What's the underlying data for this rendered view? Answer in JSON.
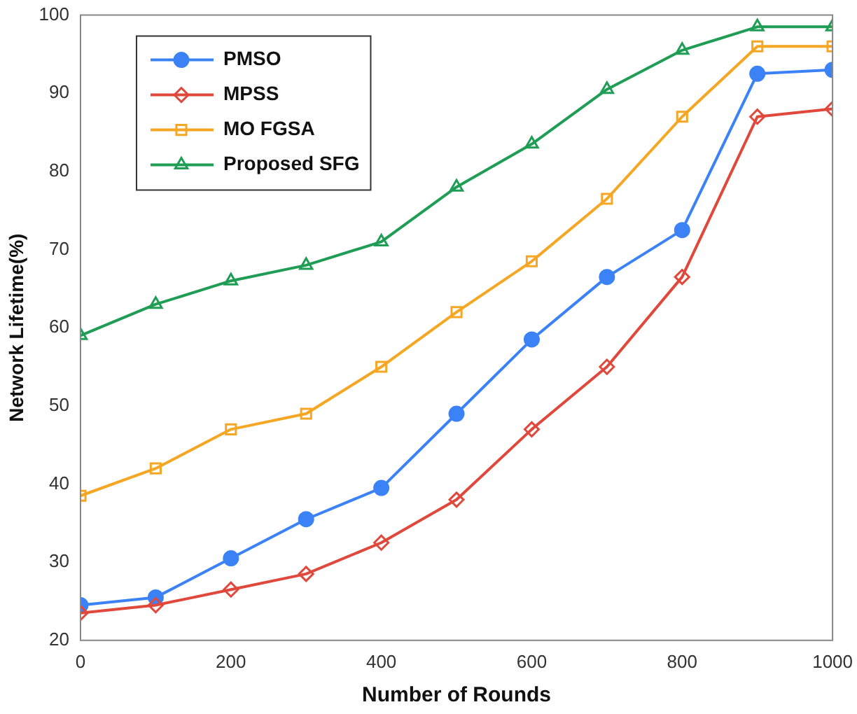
{
  "chart_data": {
    "type": "line",
    "xlabel": "Number of Rounds",
    "ylabel": "Network Lifetime(%)",
    "x": [
      0,
      100,
      200,
      300,
      400,
      500,
      600,
      700,
      800,
      900,
      1000
    ],
    "xlim": [
      0,
      1000
    ],
    "xticks": [
      0,
      200,
      400,
      600,
      800,
      1000
    ],
    "ylim": [
      20,
      100
    ],
    "yticks": [
      20,
      30,
      40,
      50,
      60,
      70,
      80,
      90,
      100
    ],
    "grid": false,
    "legend": "top left",
    "series": [
      {
        "name": "PMSO",
        "color": "#3b82f6",
        "marker": "circle",
        "values": [
          24.5,
          25.5,
          30.5,
          35.5,
          39.5,
          49,
          58.5,
          66.5,
          72.5,
          92.5,
          93
        ]
      },
      {
        "name": "MPSS",
        "color": "#e0483c",
        "marker": "diamond",
        "values": [
          23.5,
          24.5,
          26.5,
          28.5,
          32.5,
          38,
          47,
          55,
          66.5,
          87,
          88
        ]
      },
      {
        "name": "MO FGSA",
        "color": "#f5a623",
        "marker": "square",
        "values": [
          38.5,
          42,
          47,
          49,
          55,
          62,
          68.5,
          76.5,
          87,
          96,
          96
        ]
      },
      {
        "name": "Proposed SFG",
        "color": "#1f9d55",
        "marker": "triangle",
        "values": [
          59,
          63,
          66,
          68,
          71,
          78,
          83.5,
          90.5,
          95.5,
          98.5,
          98.5
        ]
      }
    ]
  }
}
